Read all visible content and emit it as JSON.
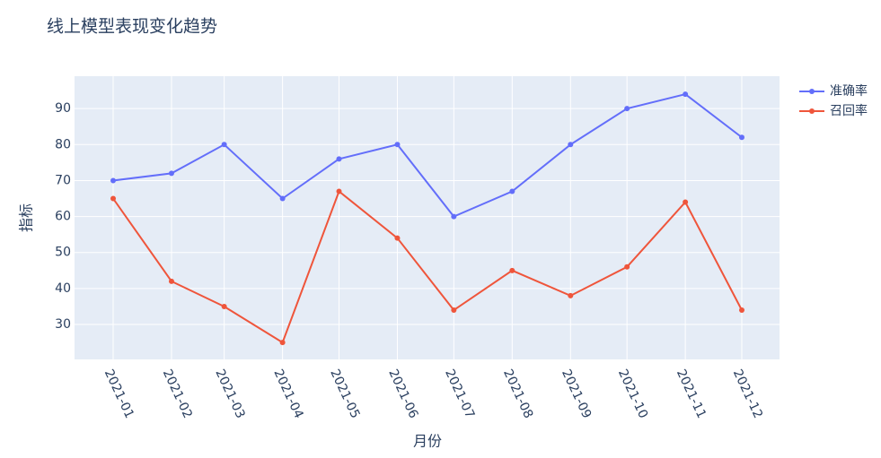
{
  "chart_data": {
    "type": "line",
    "title": "线上模型表现变化趋势",
    "x_label": "月份",
    "y_label": "指标",
    "x": [
      "2021-01",
      "2021-02",
      "2021-03",
      "2021-04",
      "2021-05",
      "2021-06",
      "2021-07",
      "2021-08",
      "2021-09",
      "2021-10",
      "2021-11",
      "2021-12"
    ],
    "series": [
      {
        "name": "准确率",
        "color": "#636efa",
        "values": [
          70,
          72,
          80,
          65,
          76,
          80,
          60,
          67,
          80,
          90,
          94,
          82
        ]
      },
      {
        "name": "召回率",
        "color": "#ef553b",
        "values": [
          65,
          42,
          35,
          25,
          67,
          54,
          34,
          45,
          38,
          46,
          64,
          34
        ]
      }
    ],
    "ylim": [
      20.3,
      99
    ],
    "yticks": [
      30,
      40,
      50,
      60,
      70,
      80,
      90
    ],
    "grid": true
  }
}
